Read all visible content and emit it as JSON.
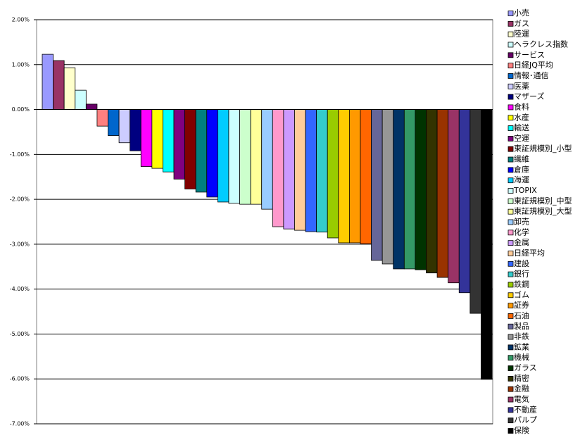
{
  "chart_data": {
    "type": "bar",
    "ylim": [
      -7,
      2
    ],
    "yticks": [
      {
        "value": -7,
        "label": "-7.00%"
      },
      {
        "value": -6,
        "label": "-6.00%"
      },
      {
        "value": -5,
        "label": "-5.00%"
      },
      {
        "value": -4,
        "label": "-4.00%"
      },
      {
        "value": -3,
        "label": "-3.00%"
      },
      {
        "value": -2,
        "label": "-2.00%"
      },
      {
        "value": -1,
        "label": "-1.00%"
      },
      {
        "value": 0,
        "label": "0.00%"
      },
      {
        "value": 1,
        "label": "1.00%"
      },
      {
        "value": 2,
        "label": "2.00%"
      }
    ],
    "grid": true,
    "legend": "right",
    "series": [
      {
        "name": "小売",
        "color": "#9999ff",
        "values": [
          1.23
        ]
      },
      {
        "name": "ガス",
        "color": "#993366",
        "values": [
          1.09
        ]
      },
      {
        "name": "陸運",
        "color": "#ffffcc",
        "values": [
          0.93
        ]
      },
      {
        "name": "ヘラクレス指数",
        "color": "#ccffff",
        "values": [
          0.43
        ]
      },
      {
        "name": "サービス",
        "color": "#660066",
        "values": [
          0.12
        ]
      },
      {
        "name": "日経JQ平均",
        "color": "#ff8080",
        "values": [
          -0.37
        ]
      },
      {
        "name": "情報･通信",
        "color": "#0066cc",
        "values": [
          -0.58
        ]
      },
      {
        "name": "医薬",
        "color": "#ccccff",
        "values": [
          -0.74
        ]
      },
      {
        "name": "マザーズ",
        "color": "#000080",
        "values": [
          -0.92
        ]
      },
      {
        "name": "食料",
        "color": "#ff00ff",
        "values": [
          -1.27
        ]
      },
      {
        "name": "水産",
        "color": "#ffff00",
        "values": [
          -1.31
        ]
      },
      {
        "name": "輸送",
        "color": "#00ffff",
        "values": [
          -1.39
        ]
      },
      {
        "name": "空運",
        "color": "#800080",
        "values": [
          -1.55
        ]
      },
      {
        "name": "東証規模別_小型",
        "color": "#800000",
        "values": [
          -1.77
        ]
      },
      {
        "name": "繊維",
        "color": "#008080",
        "values": [
          -1.84
        ]
      },
      {
        "name": "倉庫",
        "color": "#0000ff",
        "values": [
          -1.95
        ]
      },
      {
        "name": "海運",
        "color": "#00ccff",
        "values": [
          -2.06
        ]
      },
      {
        "name": "TOPIX",
        "color": "#ccffff",
        "values": [
          -2.09
        ]
      },
      {
        "name": "東証規模別_中型",
        "color": "#ccffcc",
        "values": [
          -2.11
        ]
      },
      {
        "name": "東証規模別_大型",
        "color": "#ffff99",
        "values": [
          -2.11
        ]
      },
      {
        "name": "卸売",
        "color": "#99ccff",
        "values": [
          -2.22
        ]
      },
      {
        "name": "化学",
        "color": "#ff99cc",
        "values": [
          -2.61
        ]
      },
      {
        "name": "金属",
        "color": "#cc99ff",
        "values": [
          -2.66
        ]
      },
      {
        "name": "日経平均",
        "color": "#ffcc99",
        "values": [
          -2.69
        ]
      },
      {
        "name": "建設",
        "color": "#3366ff",
        "values": [
          -2.72
        ]
      },
      {
        "name": "銀行",
        "color": "#33cccc",
        "values": [
          -2.73
        ]
      },
      {
        "name": "鉄鋼",
        "color": "#99cc00",
        "values": [
          -2.86
        ]
      },
      {
        "name": "ゴム",
        "color": "#ffcc00",
        "values": [
          -2.97
        ]
      },
      {
        "name": "証券",
        "color": "#ff9900",
        "values": [
          -2.97
        ]
      },
      {
        "name": "石油",
        "color": "#ff6600",
        "values": [
          -2.99
        ]
      },
      {
        "name": "製品",
        "color": "#666699",
        "values": [
          -3.36
        ]
      },
      {
        "name": "非鉄",
        "color": "#969696",
        "values": [
          -3.44
        ]
      },
      {
        "name": "鉱業",
        "color": "#003366",
        "values": [
          -3.55
        ]
      },
      {
        "name": "機械",
        "color": "#339966",
        "values": [
          -3.55
        ]
      },
      {
        "name": "ガラス",
        "color": "#003300",
        "values": [
          -3.57
        ]
      },
      {
        "name": "精密",
        "color": "#333300",
        "values": [
          -3.64
        ]
      },
      {
        "name": "金融",
        "color": "#993300",
        "values": [
          -3.74
        ]
      },
      {
        "name": "電気",
        "color": "#993366",
        "values": [
          -3.86
        ]
      },
      {
        "name": "不動産",
        "color": "#333399",
        "values": [
          -4.08
        ]
      },
      {
        "name": "パルプ",
        "color": "#333333",
        "values": [
          -4.54
        ]
      },
      {
        "name": "保険",
        "color": "#000000",
        "values": [
          -6.01
        ]
      }
    ]
  }
}
